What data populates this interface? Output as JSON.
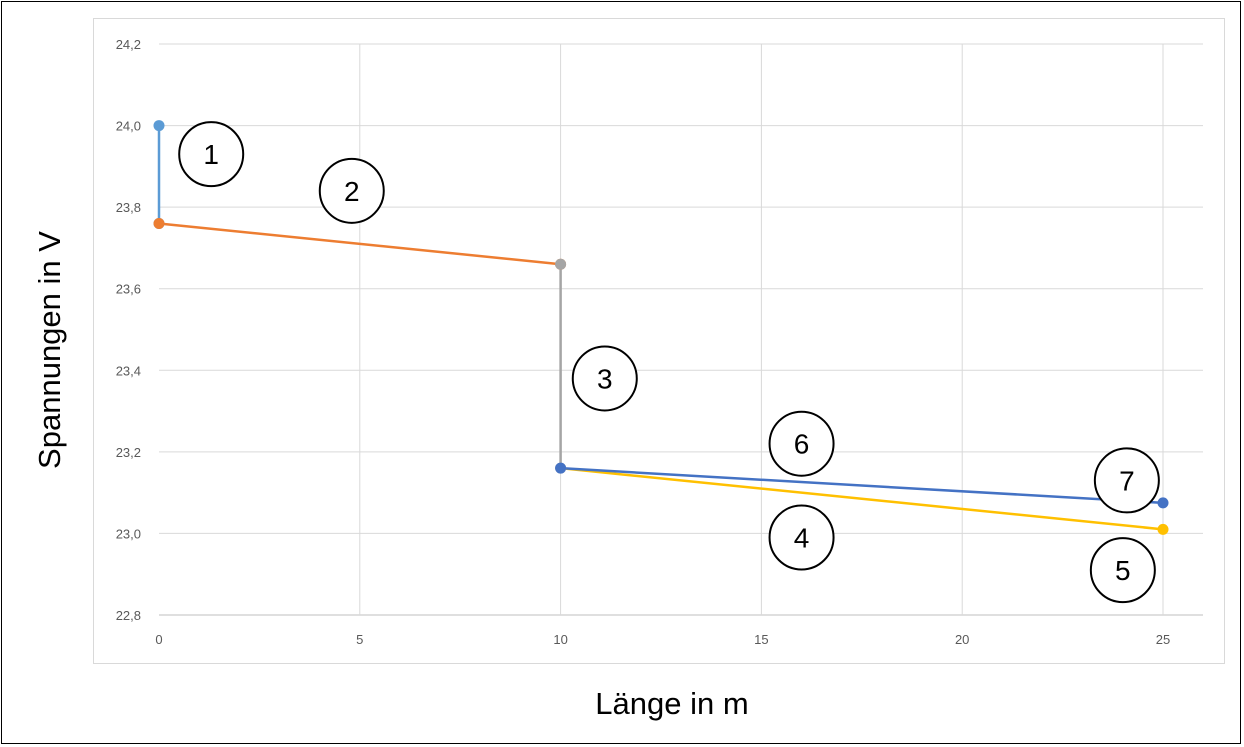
{
  "chart_data": {
    "type": "line",
    "xlabel": "Länge in m",
    "ylabel": "Spannungen in V",
    "xlim": [
      0,
      25
    ],
    "ylim": [
      22.8,
      24.2
    ],
    "x_ticks": [
      "0",
      "5",
      "10",
      "15",
      "20",
      "25"
    ],
    "y_ticks": [
      "22,8",
      "23,0",
      "23,2",
      "23,4",
      "23,6",
      "23,8",
      "24,0",
      "24,2"
    ],
    "grid": true,
    "series": [
      {
        "color": "#5b9bd5",
        "points": [
          [
            0,
            24.0
          ],
          [
            0,
            23.76
          ]
        ]
      },
      {
        "color": "#ed7d31",
        "points": [
          [
            0,
            23.76
          ],
          [
            10,
            23.66
          ]
        ]
      },
      {
        "color": "#a5a5a5",
        "points": [
          [
            10,
            23.66
          ],
          [
            10,
            23.16
          ]
        ]
      },
      {
        "color": "#ffc000",
        "points": [
          [
            10,
            23.16
          ],
          [
            25,
            23.01
          ]
        ]
      },
      {
        "color": "#4472c4",
        "points": [
          [
            10,
            23.16
          ],
          [
            25,
            23.075
          ]
        ]
      }
    ],
    "annotations": [
      {
        "label": "1",
        "x": 1.3,
        "y": 23.93
      },
      {
        "label": "2",
        "x": 4.8,
        "y": 23.84
      },
      {
        "label": "3",
        "x": 11.1,
        "y": 23.38
      },
      {
        "label": "4",
        "x": 16.0,
        "y": 22.99
      },
      {
        "label": "5",
        "x": 24.0,
        "y": 22.91
      },
      {
        "label": "6",
        "x": 16.0,
        "y": 23.22
      },
      {
        "label": "7",
        "x": 24.1,
        "y": 23.13
      }
    ]
  }
}
